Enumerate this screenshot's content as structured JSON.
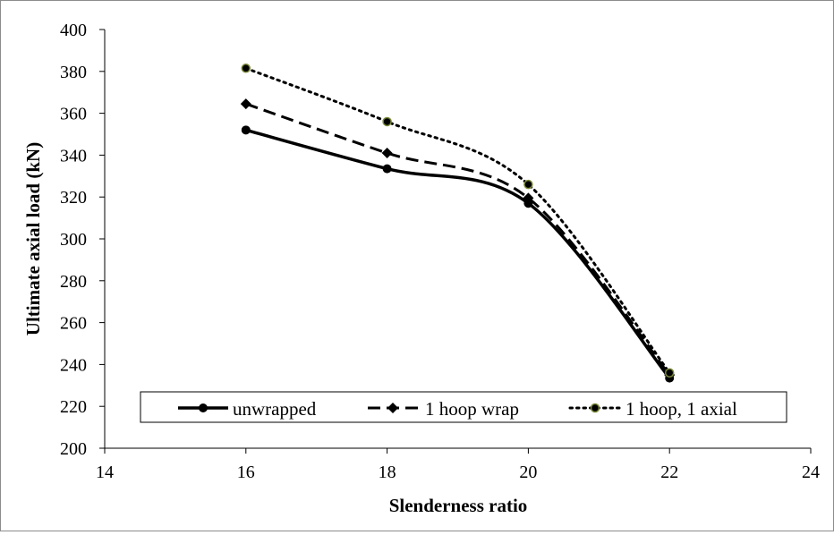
{
  "chart_data": {
    "type": "line",
    "title": "",
    "xlabel": "Slenderness ratio",
    "ylabel": "Ultimate axial load (kN)",
    "xlim": [
      14,
      24
    ],
    "ylim": [
      200,
      400
    ],
    "xticks": [
      14,
      16,
      18,
      20,
      22,
      24
    ],
    "yticks": [
      200,
      220,
      240,
      260,
      280,
      300,
      320,
      340,
      360,
      380,
      400
    ],
    "grid": false,
    "smooth": true,
    "legend_position": "bottom-inside",
    "series": [
      {
        "name": "unwrapped",
        "marker": "circle",
        "line_style": "solid",
        "color": "#000000",
        "x": [
          16,
          18,
          20,
          22
        ],
        "values": [
          352,
          333.5,
          317,
          233.5
        ]
      },
      {
        "name": "1 hoop wrap",
        "marker": "diamond",
        "line_style": "dashed",
        "color": "#000000",
        "x": [
          16,
          18,
          20,
          22
        ],
        "values": [
          364.5,
          341,
          319.5,
          235
        ]
      },
      {
        "name": "1 hoop, 1 axial",
        "marker": "circle-small",
        "line_style": "dotted",
        "color": "#000000",
        "marker_fill": "#7a8a3a",
        "x": [
          16,
          18,
          20,
          22
        ],
        "values": [
          381.5,
          356,
          326,
          236
        ]
      }
    ]
  }
}
